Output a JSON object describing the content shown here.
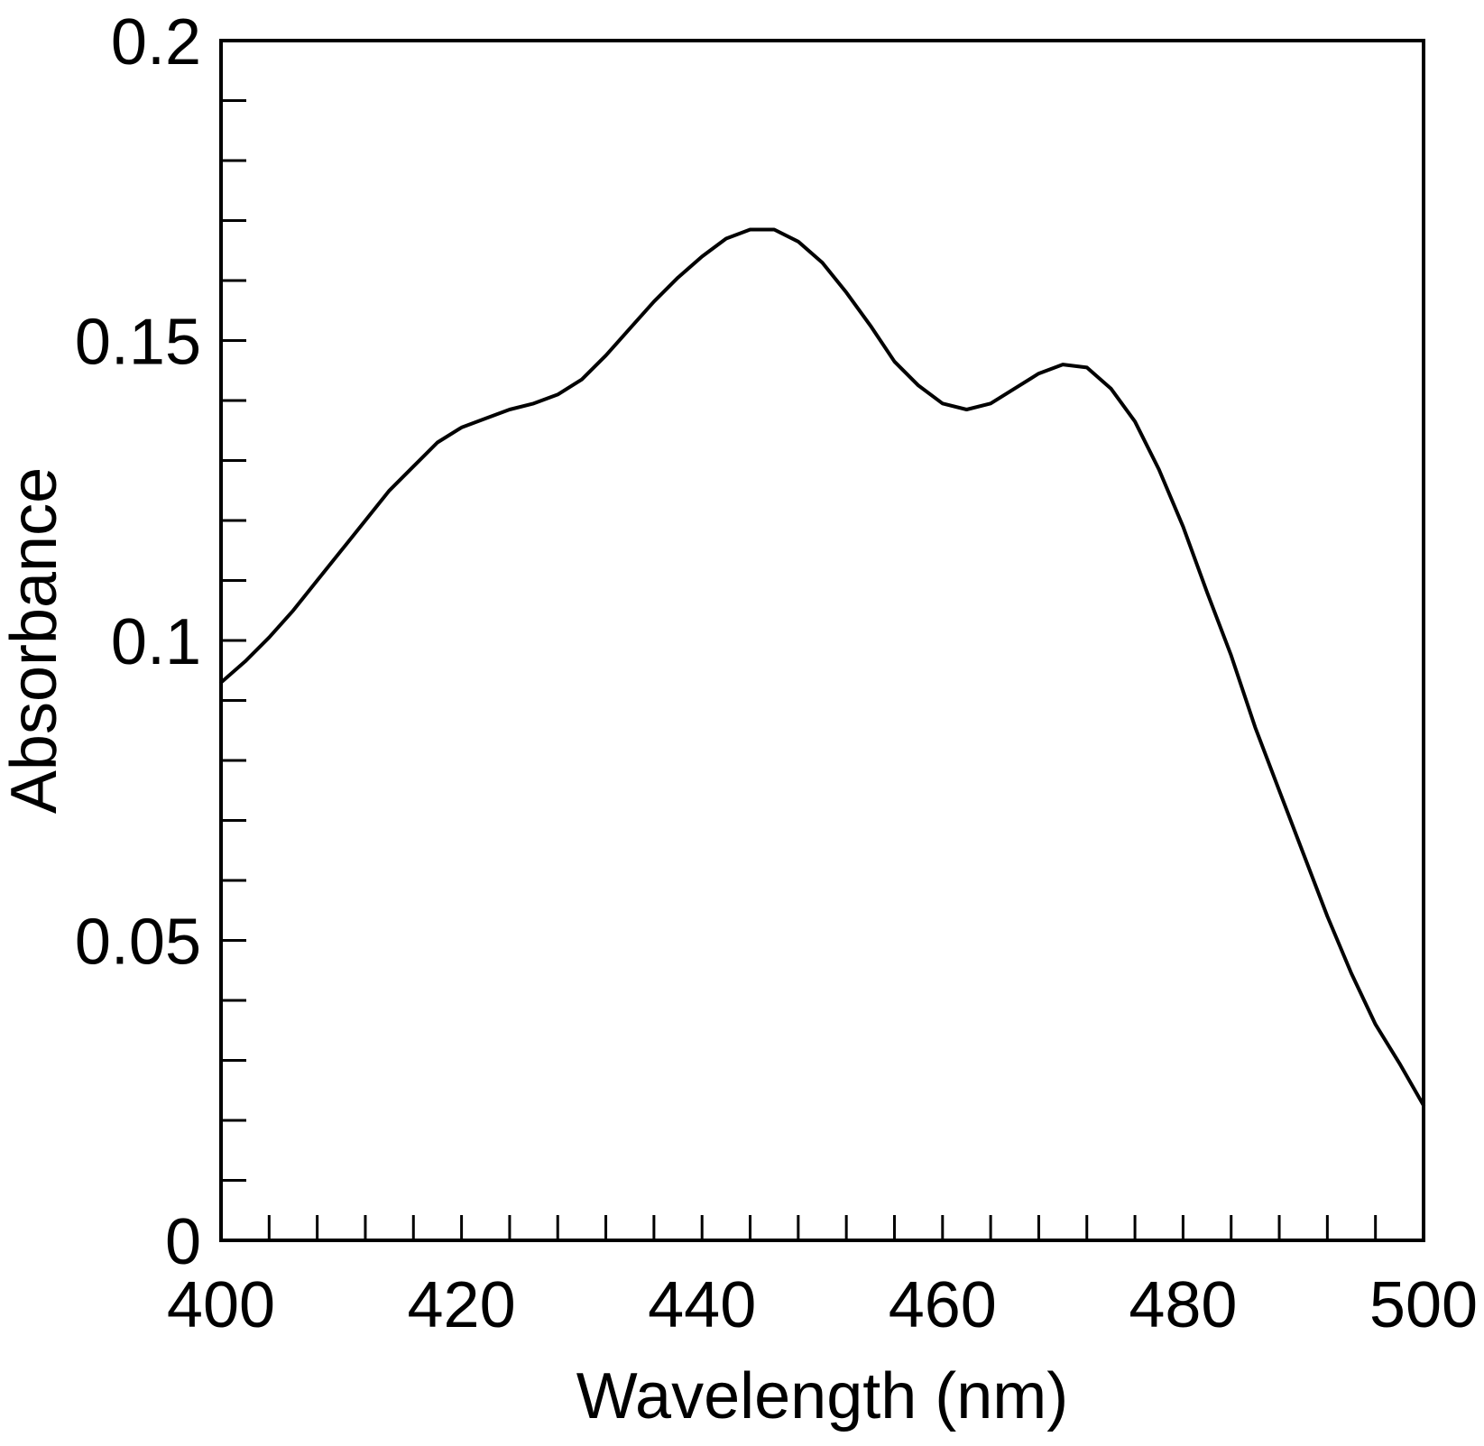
{
  "chart_data": {
    "type": "line",
    "title": "",
    "xlabel": "Wavelength (nm)",
    "ylabel": "Absorbance",
    "xlim": [
      400,
      500
    ],
    "ylim": [
      0,
      0.2
    ],
    "x_major_ticks": [
      400,
      420,
      440,
      460,
      480,
      500
    ],
    "x_tick_labels": [
      "400",
      "420",
      "440",
      "460",
      "480",
      "500"
    ],
    "x_minor_step": 4,
    "y_major_ticks": [
      0,
      0.05,
      0.1,
      0.15,
      0.2
    ],
    "y_tick_labels": [
      "0",
      "0.05",
      "0.1",
      "0.15",
      "0.2"
    ],
    "y_minor_step": 0.01,
    "grid": false,
    "legend": "none",
    "line_color": "#000000",
    "series": [
      {
        "x": [
          400,
          402,
          404,
          406,
          408,
          410,
          412,
          414,
          416,
          418,
          420,
          422,
          424,
          426,
          428,
          430,
          432,
          434,
          436,
          438,
          440,
          442,
          444,
          446,
          448,
          450,
          452,
          454,
          456,
          458,
          460,
          462,
          464,
          466,
          468,
          470,
          472,
          474,
          476,
          478,
          480,
          482,
          484,
          486,
          488,
          490,
          492,
          494,
          496,
          498,
          500
        ],
        "y": [
          0.093,
          0.0965,
          0.1005,
          0.105,
          0.11,
          0.115,
          0.12,
          0.125,
          0.129,
          0.133,
          0.1355,
          0.137,
          0.1385,
          0.1395,
          0.141,
          0.1435,
          0.1475,
          0.152,
          0.1565,
          0.1605,
          0.164,
          0.167,
          0.1685,
          0.1685,
          0.1665,
          0.163,
          0.158,
          0.1525,
          0.1465,
          0.1425,
          0.1395,
          0.1385,
          0.1395,
          0.142,
          0.1445,
          0.146,
          0.1455,
          0.142,
          0.1365,
          0.1285,
          0.119,
          0.108,
          0.0975,
          0.0855,
          0.075,
          0.0645,
          0.054,
          0.0445,
          0.036,
          0.0295,
          0.0225
        ]
      }
    ]
  }
}
